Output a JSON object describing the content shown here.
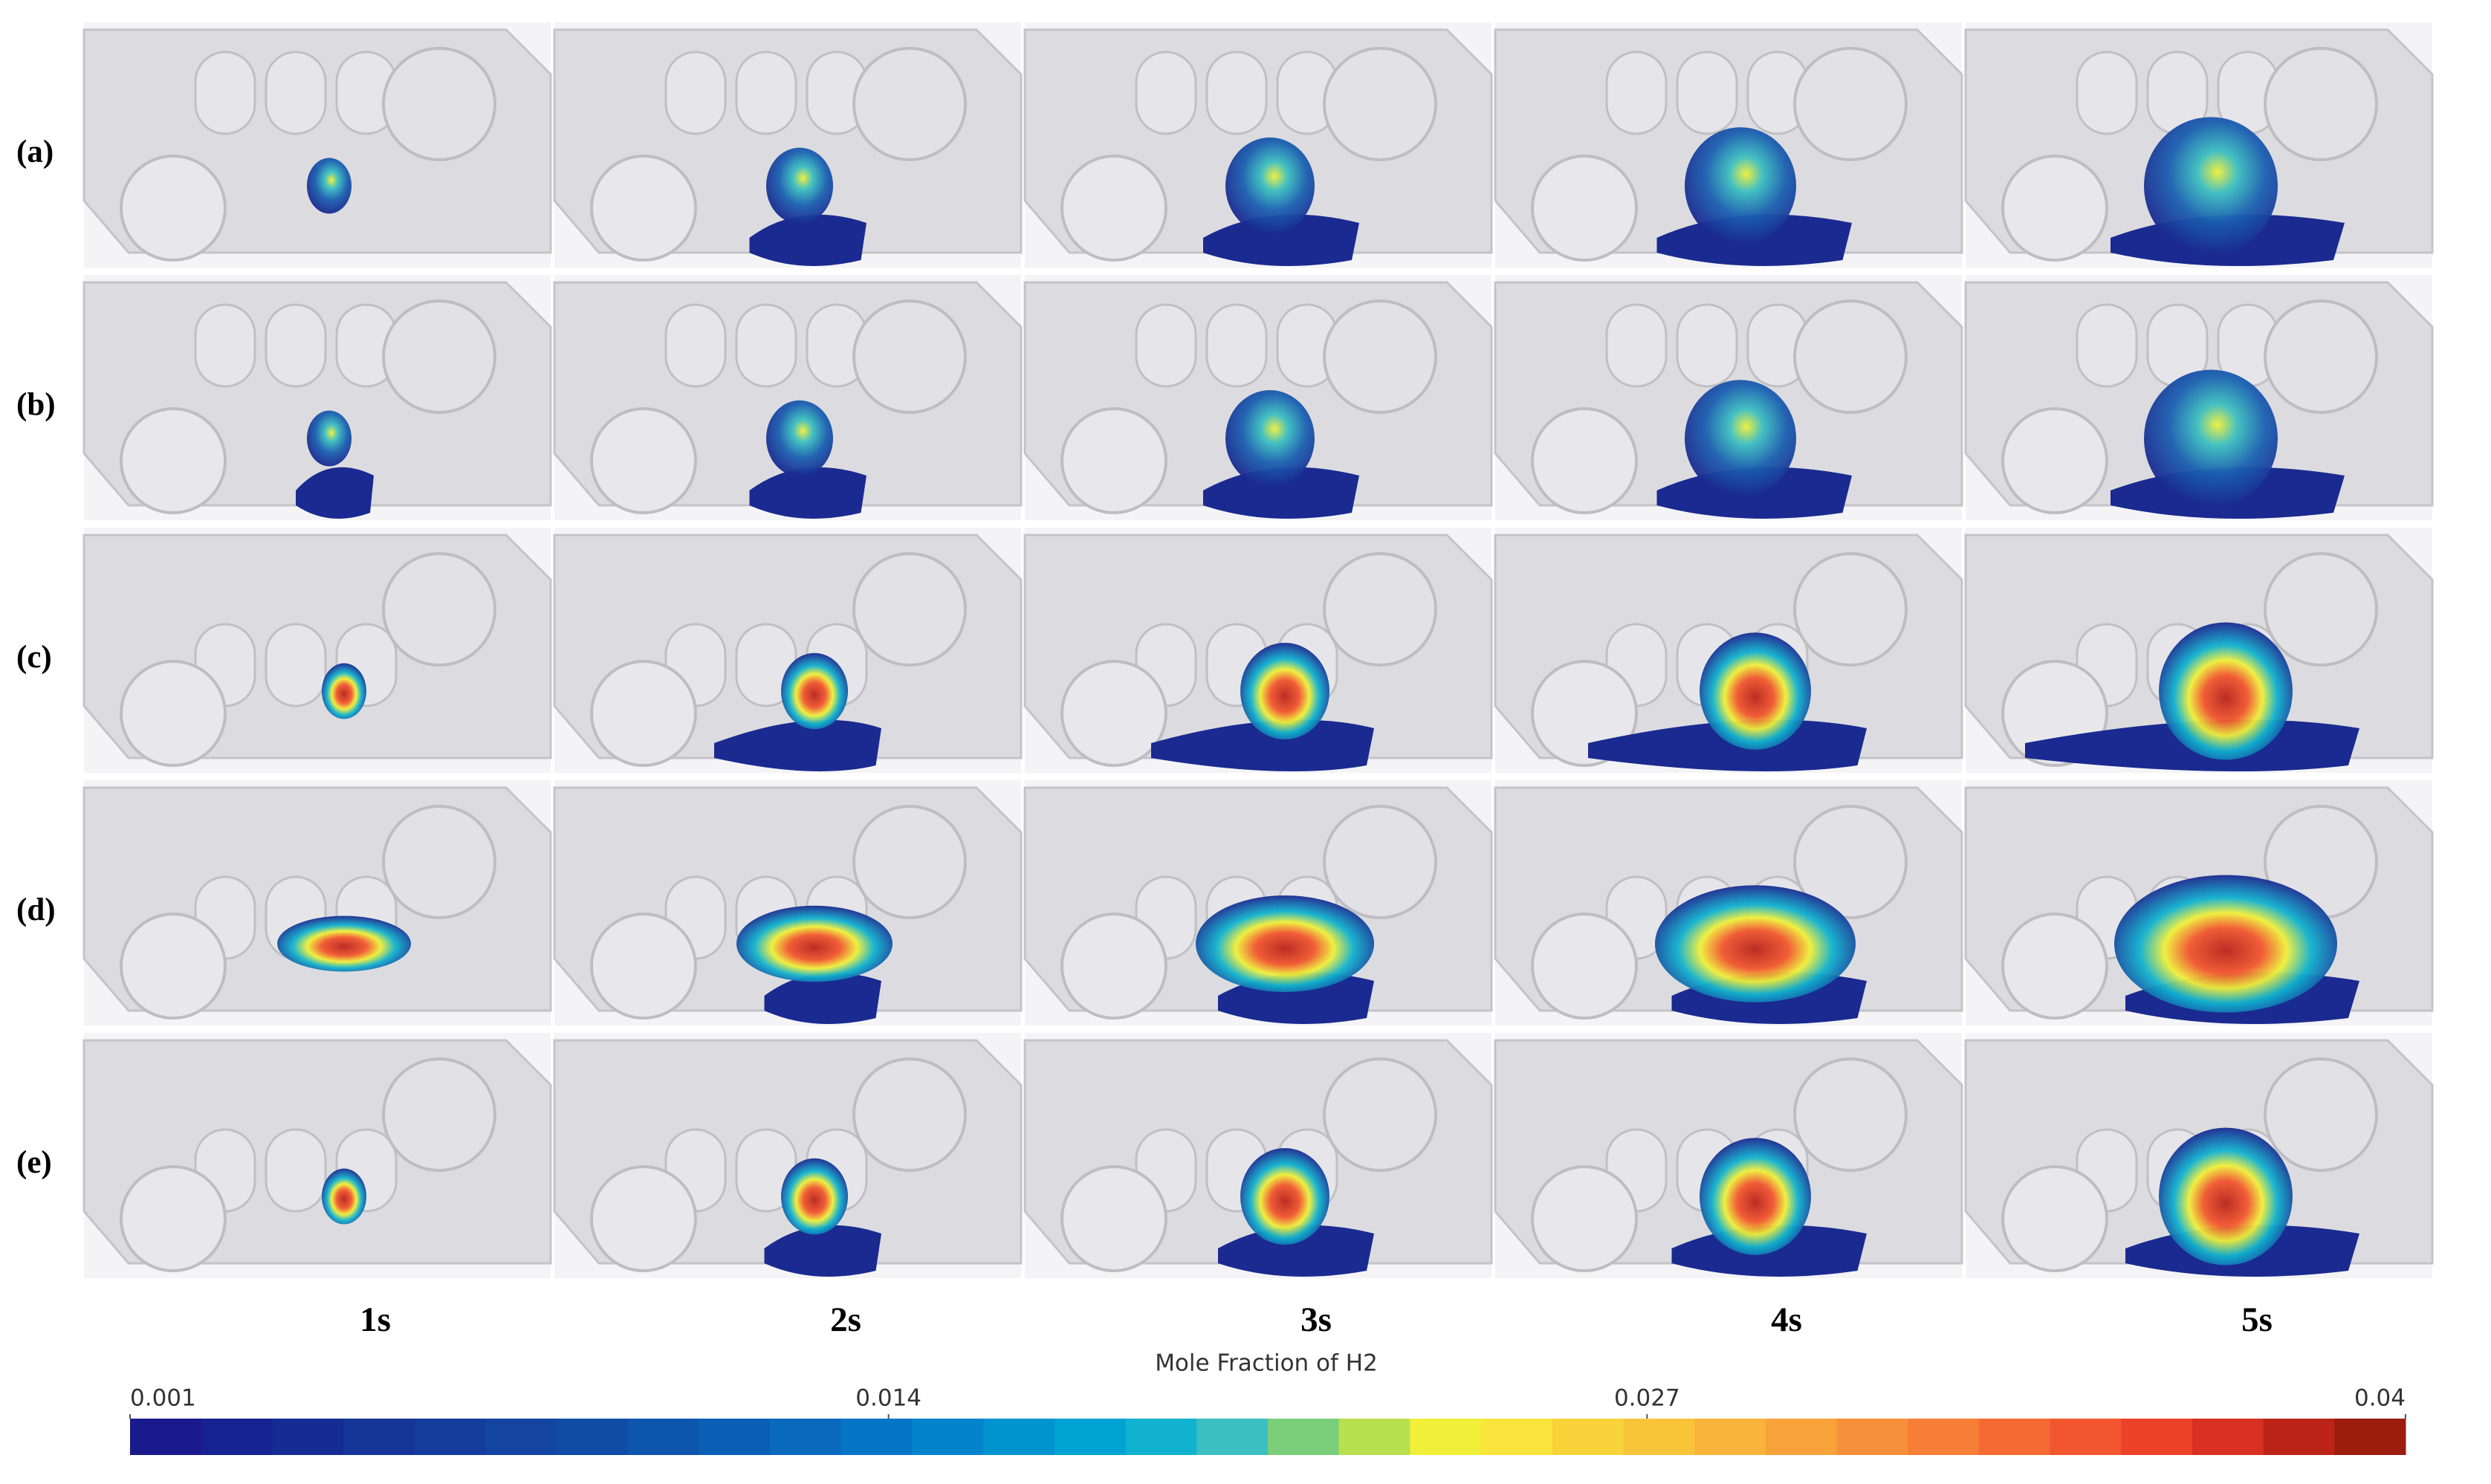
{
  "row_labels": [
    "(a)",
    "(b)",
    "(c)",
    "(d)",
    "(e)"
  ],
  "column_labels": [
    "1s",
    "2s",
    "3s",
    "4s",
    "5s"
  ],
  "colorbar": {
    "title": "Mole Fraction of H2",
    "lim": [
      0.001,
      0.04
    ],
    "ticks": [
      0.001,
      0.014,
      0.027,
      0.04
    ],
    "colors": [
      "#1a1a8c",
      "#15228f",
      "#142c94",
      "#153598",
      "#143c9c",
      "#1244a0",
      "#104ca6",
      "#0d55ad",
      "#0b5fb5",
      "#0869bd",
      "#0575c5",
      "#0283cc",
      "#0093cf",
      "#00a3d2",
      "#10b2cf",
      "#3cbfc0",
      "#7ccf7a",
      "#b8e04e",
      "#f0f03a",
      "#f8e43a",
      "#f8d43a",
      "#f8c43a",
      "#f8b43a",
      "#f8a23a",
      "#f7903a",
      "#f67e36",
      "#f46a32",
      "#f2562e",
      "#ec4228",
      "#d83022",
      "#bc2418",
      "#9c1c0e"
    ]
  }
}
